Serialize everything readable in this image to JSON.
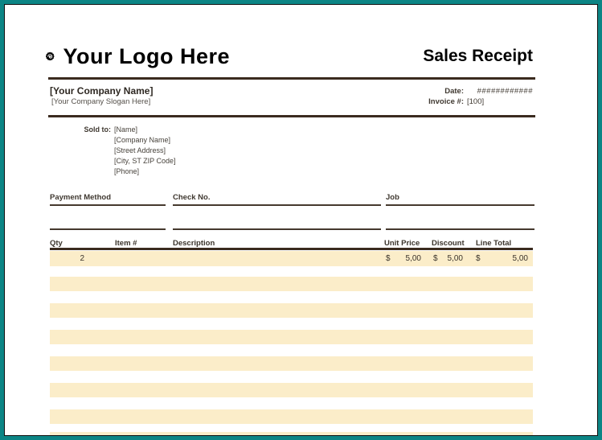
{
  "header": {
    "logo_icon": "rosette-spiral-badge",
    "logo_placeholder": "Your Logo Here",
    "title": "Sales Receipt"
  },
  "company": {
    "name": "[Your Company Name]",
    "slogan": "[Your Company Slogan Here]"
  },
  "invoice_meta": {
    "date_label": "Date:",
    "date_value": "############",
    "invoice_label": "Invoice #:",
    "invoice_value": "[100]"
  },
  "sold_to": {
    "label": "Sold to:",
    "lines": [
      "[Name]",
      "[Company Name]",
      "[Street Address]",
      "[City, ST ZIP Code]",
      "[Phone]"
    ]
  },
  "payment_section": {
    "payment_method_label": "Payment Method",
    "check_no_label": "Check No.",
    "job_label": "Job"
  },
  "items_table": {
    "headers": {
      "qty": "Qty",
      "item": "Item #",
      "description": "Description",
      "unit_price": "Unit Price",
      "discount": "Discount",
      "line_total": "Line Total"
    },
    "currency_symbol": "$",
    "rows": [
      {
        "qty": "2",
        "item": "",
        "description": "",
        "unit_price": "5,00",
        "discount": "5,00",
        "line_total": "5,00"
      }
    ],
    "empty_row_count": 7
  },
  "colors": {
    "frame_teal": "#0C8585",
    "rule_brown": "#3B2B1F",
    "row_cream": "#FBEDC9",
    "text_dark": "#3F3830"
  }
}
